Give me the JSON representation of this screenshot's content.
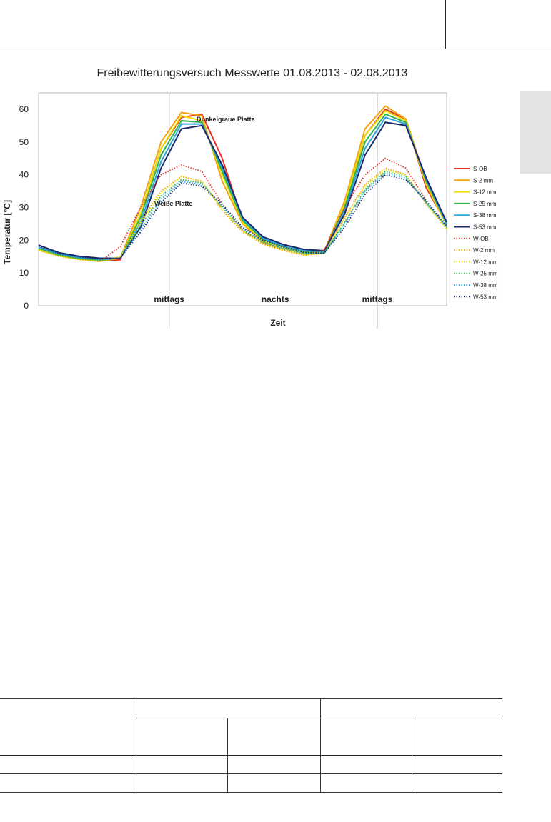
{
  "chart_data": {
    "type": "line",
    "title": "Freibewitterungsversuch Messwerte 01.08.2013 - 02.08.2013",
    "xlabel": "Zeit",
    "ylabel": "Temperatur [°C]",
    "ylim": [
      0,
      65
    ],
    "yticks": [
      0,
      10,
      20,
      30,
      40,
      50,
      60
    ],
    "grid": "x-only",
    "legend_position": "right",
    "x_annotations": [
      "mittags",
      "nachts",
      "mittags"
    ],
    "annotations": [
      "Dunkelgraue Platte",
      "Weiße Platte"
    ],
    "x": [
      0,
      0.05,
      0.1,
      0.15,
      0.2,
      0.25,
      0.3,
      0.35,
      0.4,
      0.45,
      0.5,
      0.55,
      0.6,
      0.65,
      0.7,
      0.75,
      0.8,
      0.85,
      0.9,
      0.95,
      1
    ],
    "series": [
      {
        "name": "S-OB",
        "style": "solid",
        "color": "#e8302a",
        "values": [
          17.5,
          15.5,
          14.5,
          13.8,
          14,
          28,
          48,
          57.5,
          58.5,
          45,
          26,
          20,
          18,
          16.5,
          16,
          30,
          52,
          60,
          57,
          36,
          25
        ]
      },
      {
        "name": "S-2 mm",
        "style": "solid",
        "color": "#f5a30e",
        "values": [
          17,
          15.3,
          14.2,
          13.6,
          14.5,
          30,
          50,
          59,
          58,
          38,
          25,
          19.5,
          17.5,
          16,
          16.5,
          32,
          54,
          61,
          57,
          38,
          25
        ]
      },
      {
        "name": "S-12 mm",
        "style": "solid",
        "color": "#e8e000",
        "values": [
          17.2,
          15.3,
          14.2,
          13.8,
          14.5,
          28,
          48,
          58,
          56.5,
          40,
          25.5,
          19.8,
          17.8,
          16.2,
          16.3,
          31,
          52,
          59.5,
          56.5,
          37,
          24.5
        ]
      },
      {
        "name": "S-25 mm",
        "style": "solid",
        "color": "#2fb34a",
        "values": [
          17.6,
          15.6,
          14.5,
          14,
          14.5,
          27,
          46,
          56.5,
          56,
          41,
          26,
          20.3,
          18,
          16.5,
          16.5,
          30,
          50,
          58.5,
          56,
          38,
          25
        ]
      },
      {
        "name": "S-38 mm",
        "style": "solid",
        "color": "#2ea3dd",
        "values": [
          17.9,
          15.9,
          14.8,
          14.2,
          14.5,
          25.5,
          44,
          55.5,
          55.5,
          42,
          26.5,
          20.5,
          18.3,
          16.8,
          16.5,
          29,
          48,
          57.5,
          55.5,
          38.5,
          25
        ]
      },
      {
        "name": "S-53 mm",
        "style": "solid",
        "color": "#1b2a6b",
        "values": [
          18.5,
          16.2,
          15.1,
          14.5,
          14.5,
          24,
          42,
          54,
          55,
          43,
          27,
          21,
          18.7,
          17.2,
          16.8,
          28,
          46,
          56,
          55,
          39,
          25.5
        ]
      },
      {
        "name": "W-OB",
        "style": "dotted",
        "color": "#e8302a",
        "values": [
          17,
          15.2,
          14.2,
          13.5,
          18,
          30,
          40,
          43,
          41,
          31,
          23,
          19,
          17,
          15.5,
          17,
          30,
          40,
          45,
          42,
          32,
          24
        ]
      },
      {
        "name": "W-2 mm",
        "style": "dotted",
        "color": "#f5a30e",
        "values": [
          17,
          15.1,
          14.1,
          13.5,
          15,
          26,
          35,
          39.5,
          38,
          29,
          22.5,
          18.8,
          16.8,
          15.4,
          16,
          27,
          37,
          42,
          40,
          31,
          23.5
        ]
      },
      {
        "name": "W-12 mm",
        "style": "dotted",
        "color": "#e8e000",
        "values": [
          17.1,
          15.2,
          14.1,
          13.6,
          15,
          25.5,
          34.5,
          39.5,
          38,
          29.5,
          22.8,
          19,
          17,
          15.5,
          16,
          26.5,
          36.5,
          41.5,
          40,
          31,
          23.5
        ]
      },
      {
        "name": "W-25 mm",
        "style": "dotted",
        "color": "#2fb34a",
        "values": [
          17.4,
          15.4,
          14.3,
          13.8,
          14.5,
          24.5,
          33.5,
          38.5,
          37.5,
          30,
          23.2,
          19.3,
          17.3,
          15.8,
          16,
          25.5,
          35.5,
          41,
          39.5,
          31.5,
          24
        ]
      },
      {
        "name": "W-38 mm",
        "style": "dotted",
        "color": "#2ea3dd",
        "values": [
          17.7,
          15.7,
          14.6,
          14,
          14.5,
          23.5,
          32.5,
          38,
          37,
          30.5,
          23.6,
          19.6,
          17.6,
          16,
          16,
          25,
          35,
          40.5,
          39,
          31.5,
          24
        ]
      },
      {
        "name": "W-53 mm",
        "style": "dotted",
        "color": "#1b2a6b",
        "values": [
          18.2,
          16,
          14.9,
          14.3,
          14.5,
          22.5,
          31.5,
          37.5,
          36.5,
          31,
          24,
          20,
          18,
          16.3,
          16,
          24,
          34,
          40,
          38.5,
          32,
          24.5
        ]
      }
    ]
  }
}
